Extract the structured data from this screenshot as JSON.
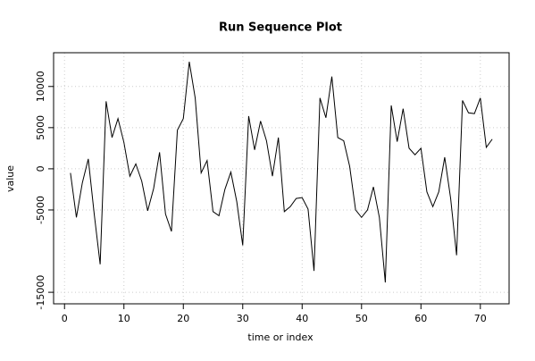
{
  "chart_data": {
    "type": "line",
    "title": "Run Sequence Plot",
    "x_label": "time or index",
    "y_label": "value",
    "x": [
      1,
      2,
      3,
      4,
      5,
      6,
      7,
      8,
      9,
      10,
      11,
      12,
      13,
      14,
      15,
      16,
      17,
      18,
      19,
      20,
      21,
      22,
      23,
      24,
      25,
      26,
      27,
      28,
      29,
      30,
      31,
      32,
      33,
      34,
      35,
      36,
      37,
      38,
      39,
      40,
      41,
      42,
      43,
      44,
      45,
      46,
      47,
      48,
      49,
      50,
      51,
      52,
      53,
      54,
      55,
      56,
      57,
      58,
      59,
      60,
      61,
      62,
      63,
      64,
      65,
      66,
      67,
      68,
      69,
      70,
      71,
      72
    ],
    "series": [
      {
        "color": "#000000",
        "values": [
          -500,
          -5900,
          -1700,
          1200,
          -5500,
          -11600,
          8200,
          3800,
          6100,
          3200,
          -900,
          600,
          -1500,
          -5100,
          -2400,
          2000,
          -5500,
          -7600,
          4700,
          6100,
          13000,
          8600,
          -500,
          1000,
          -5200,
          -5700,
          -2500,
          -400,
          -4000,
          -9300,
          6400,
          2300,
          5800,
          3400,
          -900,
          3800,
          -5200,
          -4600,
          -3600,
          -3500,
          -4900,
          -12400,
          8600,
          6200,
          11200,
          3800,
          3400,
          300,
          -5000,
          -5900,
          -5000,
          -2200,
          -5900,
          -13800,
          7700,
          3300,
          7300,
          2500,
          1700,
          2500,
          -2800,
          -4600,
          -2800,
          1400,
          -3600,
          -10500,
          8300,
          6800,
          6700,
          8600,
          2600,
          3600
        ]
      }
    ],
    "xlim": [
      -1.84,
      74.84
    ],
    "xticks": [
      0,
      10,
      20,
      30,
      40,
      50,
      60,
      70
    ],
    "ylim": [
      -16400,
      14100
    ],
    "yticks": [
      -15000,
      -5000,
      0,
      5000,
      10000
    ],
    "grid": true
  }
}
